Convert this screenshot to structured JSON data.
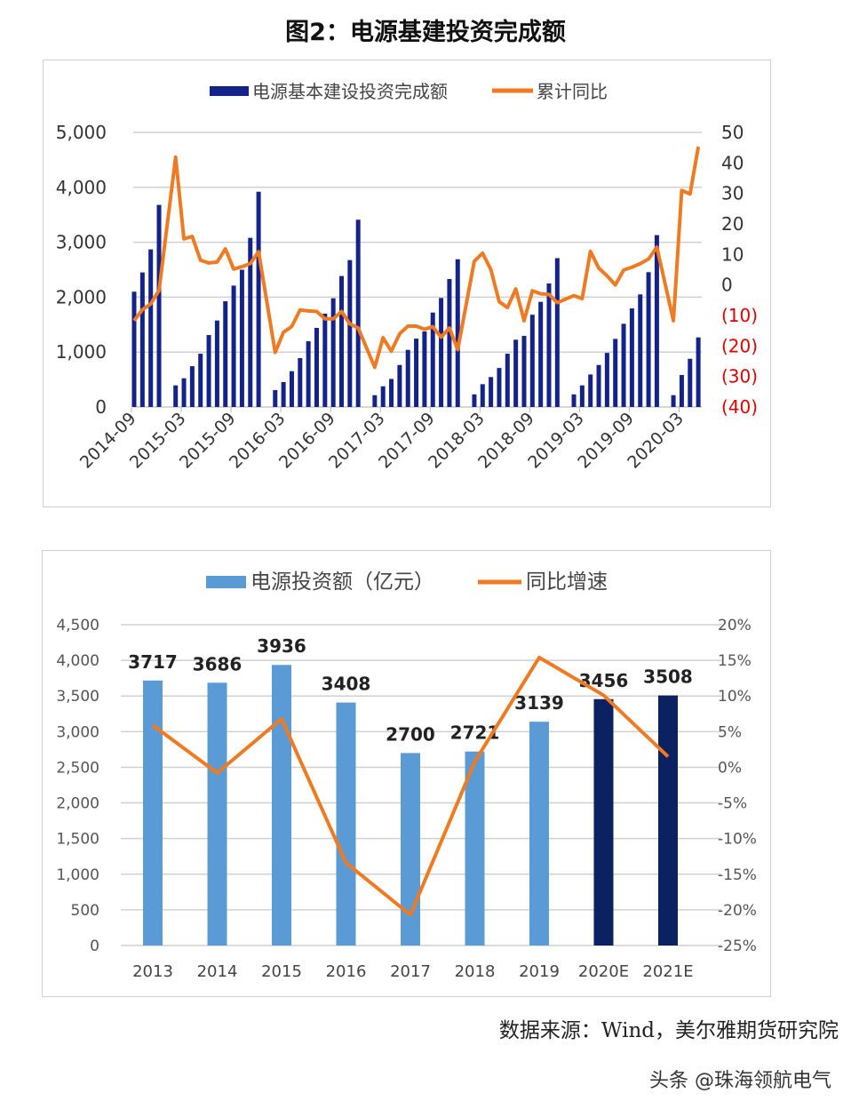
{
  "title": "图2：电源基建投资完成额",
  "source": "数据来源：Wind，美尔雅期货研究院",
  "watermark": "头条 @珠海领航电气",
  "colors": {
    "bar_top": "#13238a",
    "line": "#f07a22",
    "bar_light": "#5b9bd5",
    "bar_dark": "#0b2161",
    "neg_label": "#e00000"
  },
  "chart_data": [
    {
      "type": "bar+line",
      "legend": [
        "电源基本建设投资完成额",
        "累计同比"
      ],
      "legend_position": "top",
      "grid": true,
      "ylim": [
        0,
        5000
      ],
      "y_ticks": [
        "0",
        "1,000",
        "2,000",
        "3,000",
        "4,000",
        "5,000"
      ],
      "y2lim": [
        -40,
        50
      ],
      "y2_ticks": [
        "(40)",
        "(30)",
        "(20)",
        "(10)",
        "0",
        "10",
        "20",
        "30",
        "40",
        "50"
      ],
      "x_tick_labels": [
        "2014-09",
        "2015-03",
        "2015-09",
        "2016-03",
        "2016-09",
        "2017-03",
        "2017-09",
        "2018-03",
        "2018-09",
        "2019-03",
        "2019-09",
        "2020-03"
      ],
      "months": [
        "2014-09",
        "2014-10",
        "2014-11",
        "2014-12",
        "2015-01",
        "2015-02",
        "2015-03",
        "2015-04",
        "2015-05",
        "2015-06",
        "2015-07",
        "2015-08",
        "2015-09",
        "2015-10",
        "2015-11",
        "2015-12",
        "2016-01",
        "2016-02",
        "2016-03",
        "2016-04",
        "2016-05",
        "2016-06",
        "2016-07",
        "2016-08",
        "2016-09",
        "2016-10",
        "2016-11",
        "2016-12",
        "2017-01",
        "2017-02",
        "2017-03",
        "2017-04",
        "2017-05",
        "2017-06",
        "2017-07",
        "2017-08",
        "2017-09",
        "2017-10",
        "2017-11",
        "2017-12",
        "2018-01",
        "2018-02",
        "2018-03",
        "2018-04",
        "2018-05",
        "2018-06",
        "2018-07",
        "2018-08",
        "2018-09",
        "2018-10",
        "2018-11",
        "2018-12",
        "2019-01",
        "2019-02",
        "2019-03",
        "2019-04",
        "2019-05",
        "2019-06",
        "2019-07",
        "2019-08",
        "2019-09",
        "2019-10",
        "2019-11",
        "2019-12",
        "2020-01",
        "2020-02",
        "2020-03",
        "2020-04",
        "2020-05"
      ],
      "series": [
        {
          "name": "电源基本建设投资完成额",
          "axis": "left",
          "type": "bar",
          "values": [
            2100,
            2450,
            2870,
            3680,
            null,
            393,
            523,
            743,
            970,
            1310,
            1575,
            1925,
            2210,
            2500,
            3080,
            3920,
            null,
            307,
            453,
            652,
            890,
            1197,
            1440,
            1700,
            1980,
            2385,
            2675,
            3410,
            null,
            215,
            377,
            511,
            765,
            1040,
            1245,
            1375,
            1720,
            1985,
            2330,
            2690,
            null,
            230,
            415,
            545,
            710,
            970,
            1225,
            1295,
            1680,
            1915,
            2250,
            2710,
            null,
            230,
            393,
            592,
            765,
            985,
            1240,
            1515,
            1795,
            2050,
            2455,
            3130,
            null,
            215,
            582,
            878,
            1267
          ]
        },
        {
          "name": "累计同比",
          "axis": "right",
          "type": "line",
          "values": [
            -11.7,
            -8.1,
            -6.2,
            -1.8,
            null,
            41.9,
            15.1,
            15.9,
            8.1,
            7.2,
            7.5,
            11.8,
            5.2,
            6.0,
            7.0,
            10.9,
            null,
            -22.1,
            -15.5,
            -13.6,
            -8.2,
            -8.5,
            -8.7,
            -11.1,
            -11.1,
            -8.7,
            -12.8,
            -14.1,
            null,
            -27.0,
            -17.3,
            -21.7,
            -16.0,
            -13.5,
            -13.5,
            -14.5,
            -13.7,
            -17.1,
            -14.1,
            -21.2,
            null,
            7.8,
            10.4,
            5.0,
            -5.5,
            -7.4,
            -1.3,
            -11.7,
            -1.9,
            -2.9,
            -3.1,
            -5.8,
            null,
            -3.5,
            -4.5,
            11.0,
            5.5,
            3.0,
            0.0,
            4.9,
            5.8,
            7.0,
            8.5,
            12.4,
            null,
            -11.7,
            31.0,
            29.8,
            45.3
          ]
        }
      ]
    },
    {
      "type": "bar+line",
      "legend": [
        "电源投资额（亿元）",
        "同比增速"
      ],
      "legend_position": "top",
      "grid": true,
      "categories": [
        "2013",
        "2014",
        "2015",
        "2016",
        "2017",
        "2018",
        "2019",
        "2020E",
        "2021E"
      ],
      "ylim": [
        0,
        4500
      ],
      "y_ticks": [
        "0",
        "500",
        "1,000",
        "1,500",
        "2,000",
        "2,500",
        "3,000",
        "3,500",
        "4,000",
        "4,500"
      ],
      "y2lim": [
        -25,
        20
      ],
      "y2_ticks": [
        "-25%",
        "-20%",
        "-15%",
        "-10%",
        "-5%",
        "0%",
        "5%",
        "10%",
        "15%",
        "20%"
      ],
      "series": [
        {
          "name": "电源投资额（亿元）",
          "axis": "left",
          "type": "bar",
          "values": [
            3717,
            3686,
            3936,
            3408,
            2700,
            2721,
            3139,
            3456,
            3508
          ],
          "labels": [
            "3717",
            "3686",
            "3936",
            "3408",
            "2700",
            "2721",
            "3139",
            "3456",
            "3508"
          ],
          "estimate": [
            false,
            false,
            false,
            false,
            false,
            false,
            false,
            true,
            true
          ]
        },
        {
          "name": "同比增速",
          "axis": "right",
          "type": "line",
          "values": [
            5.9,
            -0.8,
            6.8,
            -13.4,
            -20.7,
            0.8,
            15.4,
            10.1,
            1.5
          ]
        }
      ]
    }
  ]
}
